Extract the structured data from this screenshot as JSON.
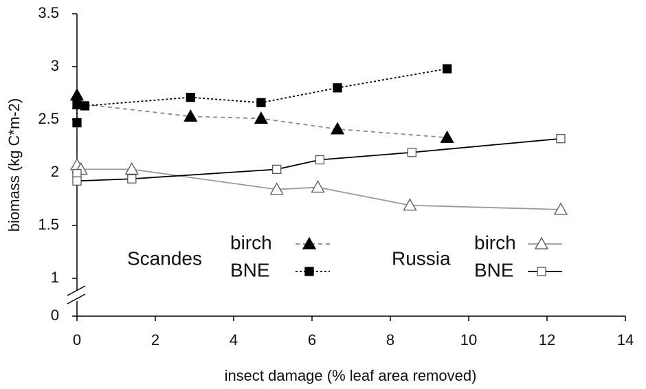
{
  "chart_data": {
    "type": "line",
    "xlabel": "insect damage (% leaf area removed)",
    "ylabel": "biomass (kg C*m-2)",
    "xlim": [
      0,
      14
    ],
    "xticks": [
      0,
      2,
      4,
      6,
      8,
      10,
      12,
      14
    ],
    "ylim": [
      1,
      3.5
    ],
    "yticks": [
      0,
      1,
      1.5,
      2,
      2.5,
      3,
      3.5
    ],
    "axis_break": true,
    "grid": false,
    "groups": [
      "Scandes",
      "Russia"
    ],
    "series": [
      {
        "name": "birch",
        "group": 0,
        "color": "#888888",
        "dash": "dashed",
        "marker": "triangle",
        "filled": true,
        "x": [
          0,
          0.05,
          2.9,
          4.7,
          6.65,
          9.45
        ],
        "values": [
          2.73,
          2.65,
          2.53,
          2.51,
          2.41,
          2.33
        ]
      },
      {
        "name": "BNE",
        "group": 0,
        "color": "#000000",
        "dash": "dotted",
        "marker": "square",
        "filled": true,
        "x": [
          0,
          0,
          0.2,
          2.9,
          4.7,
          6.65,
          9.45
        ],
        "values": [
          2.47,
          2.64,
          2.63,
          2.71,
          2.66,
          2.8,
          2.98
        ]
      },
      {
        "name": "birch",
        "group": 1,
        "color": "#999999",
        "dash": "solid",
        "marker": "triangle",
        "filled": false,
        "x": [
          0,
          0.1,
          1.4,
          5.1,
          6.15,
          8.5,
          12.35
        ],
        "values": [
          2.07,
          2.03,
          2.03,
          1.84,
          1.86,
          1.69,
          1.65
        ]
      },
      {
        "name": "BNE",
        "group": 1,
        "color": "#000000",
        "dash": "solid",
        "marker": "square",
        "filled": false,
        "x": [
          0,
          0,
          1.4,
          5.1,
          6.2,
          8.55,
          12.35
        ],
        "values": [
          1.99,
          1.92,
          1.94,
          2.03,
          2.12,
          2.19,
          2.32
        ]
      }
    ]
  }
}
